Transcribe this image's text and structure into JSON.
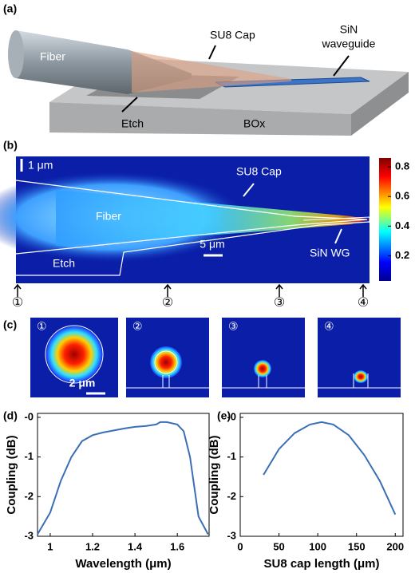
{
  "panel_a": {
    "label": "(a)",
    "fiber": "Fiber",
    "cap": "SU8 Cap",
    "waveguide": [
      "SiN",
      "waveguide"
    ],
    "etch": "Etch",
    "box": "BOx"
  },
  "panel_b": {
    "label": "(b)",
    "scale_vertical": "1 μm",
    "cap": "SU8 Cap",
    "fiber": "Fiber",
    "waveguide": "SiN WG",
    "etch": "Etch",
    "scale_horizontal": "5 μm",
    "colorbar": {
      "lim": [
        0.03,
        0.86
      ],
      "ticks": [
        0.2,
        0.4,
        0.6,
        0.8
      ]
    },
    "markers": [
      "①",
      "②",
      "③",
      "④"
    ]
  },
  "panel_c": {
    "label": "(c)",
    "markers": [
      "①",
      "②",
      "③",
      "④"
    ],
    "scale": "2 μm"
  },
  "chart_data": [
    {
      "type": "line",
      "panel_label": "(d)",
      "x_label": "Wavelength (μm)",
      "y_label": "Coupling (dB)",
      "color": "#3a6fb5",
      "x": [
        0.94,
        1.0,
        1.05,
        1.1,
        1.15,
        1.2,
        1.25,
        1.3,
        1.35,
        1.4,
        1.45,
        1.5,
        1.52,
        1.55,
        1.6,
        1.63,
        1.66,
        1.7,
        1.745
      ],
      "values": [
        -2.95,
        -2.4,
        -1.6,
        -1.0,
        -0.6,
        -0.45,
        -0.38,
        -0.33,
        -0.28,
        -0.24,
        -0.22,
        -0.18,
        -0.12,
        -0.12,
        -0.18,
        -0.35,
        -1.0,
        -2.5,
        -2.95
      ],
      "xlim": [
        0.94,
        1.75
      ],
      "ylim": [
        -3,
        0.1
      ],
      "xticks": [
        1,
        1.2,
        1.4,
        1.6
      ],
      "yticks": [
        -3,
        -2,
        -1,
        {
          "value": 0,
          "label": "-0"
        }
      ]
    },
    {
      "type": "line",
      "panel_label": "(e)",
      "x_label": "SU8 cap length (μm)",
      "y_label": "Coupling (dB)",
      "color": "#3a6fb5",
      "x": [
        30,
        50,
        70,
        90,
        105,
        120,
        140,
        160,
        180,
        200
      ],
      "values": [
        -1.45,
        -0.8,
        -0.4,
        -0.18,
        -0.12,
        -0.18,
        -0.45,
        -0.95,
        -1.6,
        -2.45
      ],
      "xlim": [
        0,
        210
      ],
      "ylim": [
        -3,
        0.1
      ],
      "xticks": [
        0,
        50,
        100,
        150,
        200
      ],
      "yticks": [
        -3,
        -2,
        -1,
        {
          "value": 0,
          "label": "-0"
        }
      ]
    }
  ]
}
